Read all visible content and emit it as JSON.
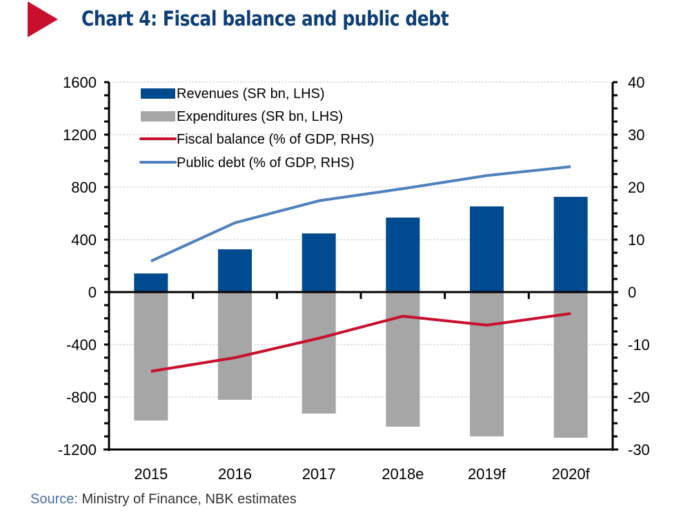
{
  "header": {
    "title": "Chart 4: Fiscal balance and public debt"
  },
  "footer": {
    "source_label": "Source:",
    "source_text": " Ministry of Finance, NBK estimates"
  },
  "chart_data": {
    "type": "bar",
    "title": "Chart 4: Fiscal balance and public debt",
    "categories": [
      "2015",
      "2016",
      "2017",
      "2018e",
      "2019f",
      "2020f"
    ],
    "left_axis": {
      "ylim": [
        -1200,
        1600
      ],
      "ticks": [
        1600,
        1200,
        800,
        400,
        0,
        -400,
        -800,
        -1200
      ]
    },
    "right_axis": {
      "ylim": [
        -30,
        40
      ],
      "ticks": [
        40,
        30,
        20,
        10,
        0,
        -10,
        -20,
        -30
      ]
    },
    "grid": true,
    "legend_position": "top-left",
    "series": [
      {
        "name": "Revenues (SR bn, LHS)",
        "type": "bar",
        "axis": "left",
        "color": "#004a8f",
        "values": [
          142,
          326,
          447,
          568,
          653,
          726
        ]
      },
      {
        "name": "Expenditures (SR bn, LHS)",
        "type": "bar",
        "axis": "left",
        "color": "#a6a6a6",
        "values": [
          -979,
          -821,
          -926,
          -1026,
          -1100,
          -1110
        ]
      },
      {
        "name": "Fiscal balance (% of GDP, RHS)",
        "type": "line",
        "axis": "right",
        "color": "#c8102e",
        "values": [
          -15.1,
          -12.5,
          -8.8,
          -4.6,
          -6.3,
          -4.1
        ]
      },
      {
        "name": "Public debt (% of GDP, RHS)",
        "type": "line",
        "axis": "right",
        "color": "#4f81bd",
        "values": [
          5.9,
          13.2,
          17.4,
          19.7,
          22.2,
          23.9
        ]
      }
    ]
  }
}
